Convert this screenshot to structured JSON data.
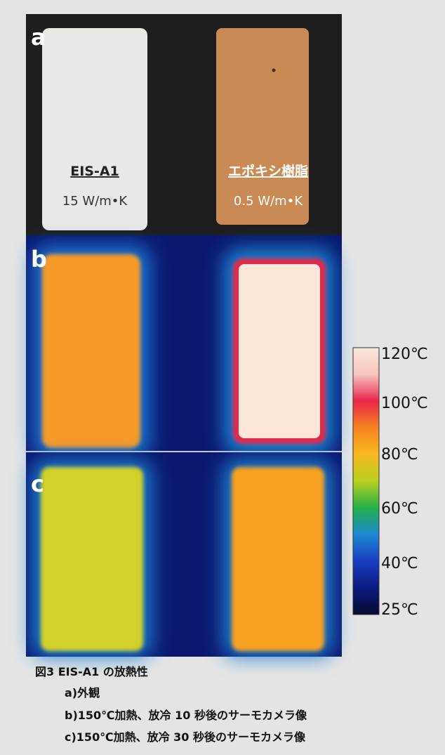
{
  "panels": [
    {
      "label": "a",
      "materials": [
        {
          "name": "EIS-A1",
          "conductivity": "15 W/m•K"
        },
        {
          "name": "エポキシ樹脂",
          "conductivity": "0.5 W/m•K"
        }
      ]
    },
    {
      "label": "b"
    },
    {
      "label": "c"
    }
  ],
  "colorbar": {
    "labels": [
      "120℃",
      "100℃",
      "80℃",
      "60℃",
      "40℃",
      "25℃"
    ]
  },
  "caption": {
    "title": "図3 EIS-A1 の放熱性",
    "lines": [
      "a)外観",
      "b)150℃加熱、放冷 10 秒後のサーモカメラ像",
      "c)150℃加熱、放冷 30 秒後のサーモカメラ像"
    ]
  }
}
